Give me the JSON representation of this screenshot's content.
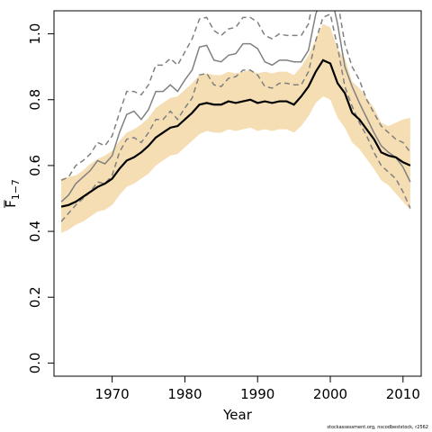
{
  "chart_data": {
    "type": "line",
    "xlabel": "Year",
    "ylabel": "F",
    "ylabel_subscript": "1−7",
    "xlim": [
      1962,
      2012.5
    ],
    "ylim": [
      -0.04,
      1.07
    ],
    "xticks": [
      1970,
      1980,
      1990,
      2000,
      2010
    ],
    "xtick_labels": [
      "1970",
      "1980",
      "1990",
      "2000",
      "2010"
    ],
    "yticks": [
      0.0,
      0.2,
      0.4,
      0.6,
      0.8,
      1.0
    ],
    "ytick_labels": [
      "0.0",
      "0.2",
      "0.4",
      "0.6",
      "0.8",
      "1.0"
    ],
    "grid": false,
    "colors": {
      "band": "#f5deb3",
      "main": "#000000",
      "grey": "#808080"
    },
    "x": [
      1963,
      1964,
      1965,
      1966,
      1967,
      1968,
      1969,
      1970,
      1971,
      1972,
      1973,
      1974,
      1975,
      1976,
      1977,
      1978,
      1979,
      1980,
      1981,
      1982,
      1983,
      1984,
      1985,
      1986,
      1987,
      1988,
      1989,
      1990,
      1991,
      1992,
      1993,
      1994,
      1995,
      1996,
      1997,
      1998,
      1999,
      2000,
      2001,
      2002,
      2003,
      2004,
      2005,
      2006,
      2007,
      2008,
      2009,
      2010,
      2011
    ],
    "series": [
      {
        "role": "estimate",
        "values": [
          0.475,
          0.48,
          0.49,
          0.505,
          0.52,
          0.535,
          0.545,
          0.56,
          0.59,
          0.615,
          0.625,
          0.64,
          0.66,
          0.685,
          0.7,
          0.715,
          0.72,
          0.74,
          0.76,
          0.785,
          0.79,
          0.785,
          0.785,
          0.795,
          0.79,
          0.795,
          0.8,
          0.79,
          0.795,
          0.79,
          0.795,
          0.795,
          0.785,
          0.81,
          0.84,
          0.885,
          0.92,
          0.91,
          0.85,
          0.82,
          0.76,
          0.74,
          0.71,
          0.68,
          0.64,
          0.63,
          0.625,
          0.61,
          0.6
        ]
      },
      {
        "role": "band-lower",
        "values": [
          0.395,
          0.405,
          0.42,
          0.43,
          0.445,
          0.46,
          0.465,
          0.48,
          0.51,
          0.535,
          0.545,
          0.56,
          0.575,
          0.6,
          0.615,
          0.63,
          0.635,
          0.655,
          0.675,
          0.695,
          0.705,
          0.7,
          0.7,
          0.71,
          0.705,
          0.71,
          0.715,
          0.705,
          0.71,
          0.705,
          0.71,
          0.71,
          0.7,
          0.72,
          0.75,
          0.79,
          0.81,
          0.8,
          0.745,
          0.715,
          0.67,
          0.65,
          0.62,
          0.59,
          0.555,
          0.54,
          0.515,
          0.49,
          0.465
        ]
      },
      {
        "role": "band-upper",
        "values": [
          0.56,
          0.565,
          0.57,
          0.585,
          0.605,
          0.62,
          0.63,
          0.645,
          0.675,
          0.7,
          0.71,
          0.725,
          0.745,
          0.775,
          0.79,
          0.805,
          0.81,
          0.83,
          0.85,
          0.875,
          0.88,
          0.875,
          0.875,
          0.885,
          0.88,
          0.885,
          0.89,
          0.88,
          0.885,
          0.88,
          0.885,
          0.885,
          0.875,
          0.9,
          0.935,
          0.985,
          1.03,
          1.02,
          0.955,
          0.925,
          0.855,
          0.835,
          0.805,
          0.775,
          0.73,
          0.72,
          0.73,
          0.74,
          0.745
        ]
      },
      {
        "role": "grey-lower-solid",
        "values": [
          0.49,
          0.51,
          0.545,
          0.565,
          0.585,
          0.615,
          0.605,
          0.63,
          0.7,
          0.755,
          0.765,
          0.74,
          0.77,
          0.825,
          0.825,
          0.845,
          0.825,
          0.86,
          0.89,
          0.96,
          0.965,
          0.92,
          0.915,
          0.935,
          0.94,
          0.97,
          0.97,
          0.955,
          0.915,
          0.905,
          0.92,
          0.92,
          0.915,
          0.915,
          0.95,
          1.06,
          1.12,
          1.13,
          1.03,
          0.9,
          0.84,
          0.79,
          0.745,
          0.7,
          0.66,
          0.64,
          0.625,
          0.595,
          0.55
        ]
      },
      {
        "role": "grey-lower-dashed",
        "values": [
          0.43,
          0.455,
          0.48,
          0.5,
          0.52,
          0.55,
          0.545,
          0.57,
          0.64,
          0.68,
          0.685,
          0.67,
          0.7,
          0.74,
          0.74,
          0.765,
          0.74,
          0.775,
          0.805,
          0.875,
          0.88,
          0.845,
          0.84,
          0.865,
          0.87,
          0.89,
          0.89,
          0.875,
          0.84,
          0.835,
          0.85,
          0.85,
          0.845,
          0.845,
          0.885,
          0.98,
          1.05,
          1.06,
          0.96,
          0.84,
          0.78,
          0.73,
          0.69,
          0.64,
          0.6,
          0.58,
          0.56,
          0.52,
          0.47
        ]
      },
      {
        "role": "grey-upper-dashed",
        "values": [
          0.555,
          0.565,
          0.6,
          0.615,
          0.635,
          0.67,
          0.66,
          0.69,
          0.76,
          0.825,
          0.825,
          0.815,
          0.845,
          0.905,
          0.905,
          0.925,
          0.905,
          0.945,
          0.985,
          1.045,
          1.05,
          1.01,
          0.995,
          1.015,
          1.02,
          1.05,
          1.05,
          1.035,
          0.995,
          0.985,
          1.0,
          0.995,
          0.995,
          0.995,
          1.03,
          1.15,
          1.2,
          1.2,
          1.1,
          0.97,
          0.9,
          0.86,
          0.8,
          0.76,
          0.72,
          0.7,
          0.68,
          0.67,
          0.64
        ]
      }
    ]
  },
  "footer": {
    "text": "stockassessment.org, nscodbeststock, r2562"
  }
}
